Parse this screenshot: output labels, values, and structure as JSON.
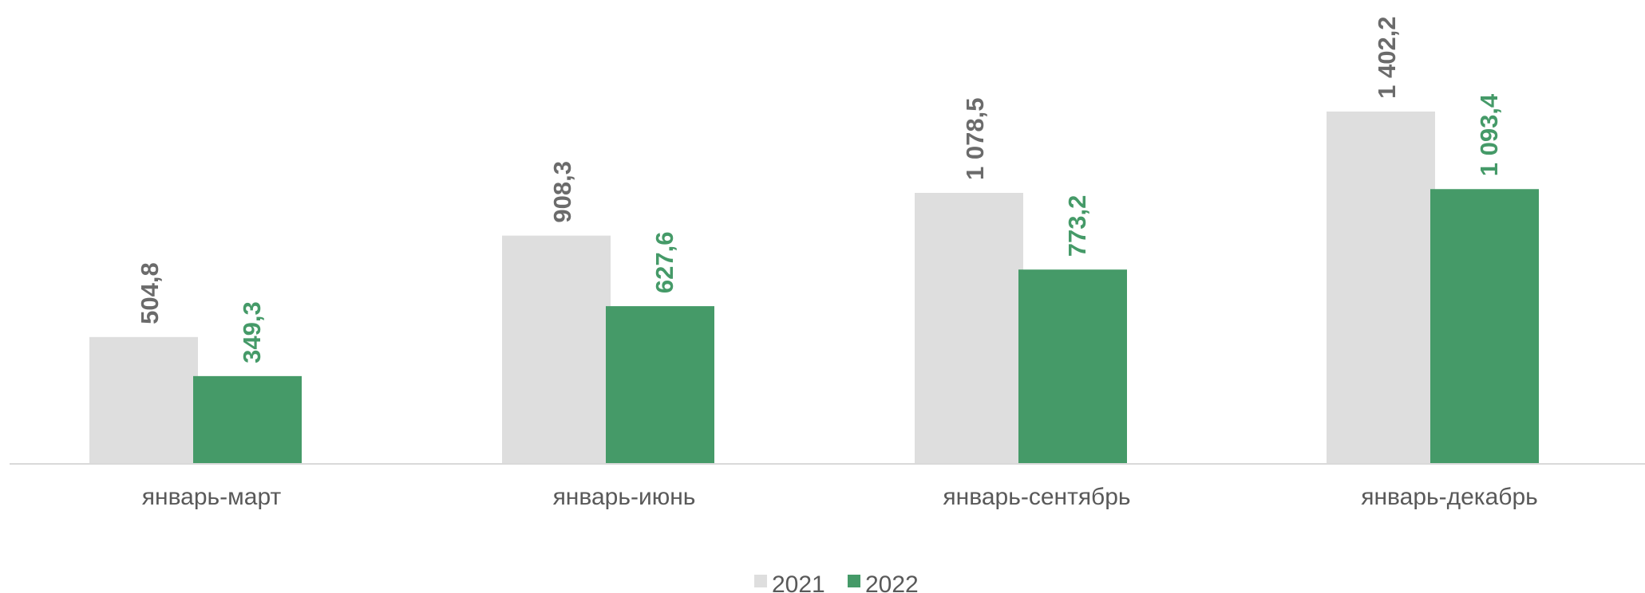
{
  "chart_data": {
    "type": "bar",
    "categories": [
      "январь-март",
      "январь-июнь",
      "январь-сентябрь",
      "январь-декабрь"
    ],
    "series": [
      {
        "name": "2021",
        "values": [
          504.8,
          908.3,
          1078.5,
          1402.2
        ],
        "labels": [
          "504,8",
          "908,3",
          "1 078,5",
          "1 402,2"
        ],
        "color": "#dedede",
        "label_color": "#6b6b6b"
      },
      {
        "name": "2022",
        "values": [
          349.3,
          627.6,
          773.2,
          1093.4
        ],
        "labels": [
          "349,3",
          "627,6",
          "773,2",
          "1 093,4"
        ],
        "color": "#459a68",
        "label_color": "#459a68"
      }
    ],
    "ylim": [
      0,
      1420
    ],
    "grid": false,
    "legend_position": "bottom-center",
    "data_labels": "rotated-vertical"
  }
}
